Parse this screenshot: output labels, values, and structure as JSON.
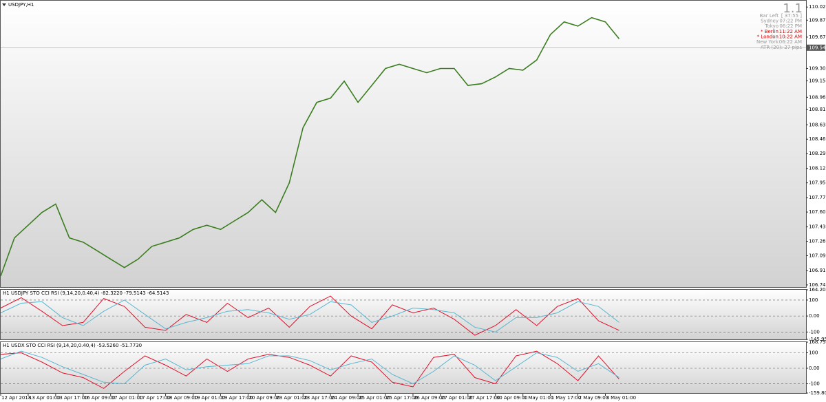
{
  "window_title": "USDJPY,H1",
  "info_panel": {
    "spread": "1.1",
    "rows": [
      [
        "Bar Left",
        "[ 37:55 ]"
      ],
      [
        "Sydney",
        "07:22 PM"
      ],
      [
        "Tokyo",
        "06:22 PM"
      ],
      [
        "* Berlin",
        "11:22 AM"
      ],
      [
        "* London",
        "10:22 AM"
      ],
      [
        "New York",
        "06:22 AM"
      ]
    ],
    "highlight_color": "#e00000",
    "atr": "ATR (20): 27 pips"
  },
  "chart_data": [
    {
      "type": "line",
      "last_price": 109.545,
      "x": [
        0,
        8,
        16,
        24,
        32,
        40,
        48,
        56,
        64,
        72,
        80,
        88,
        96,
        104,
        112,
        120,
        128,
        136,
        144,
        152,
        160,
        168,
        176,
        184,
        192,
        200,
        208,
        216,
        224,
        232,
        240,
        248,
        256,
        264,
        272,
        280,
        288,
        296,
        304,
        312,
        320,
        328,
        336,
        344,
        352,
        360
      ],
      "series": [
        {
          "color": "#3a7d1e",
          "values": [
            106.85,
            107.3,
            107.45,
            107.6,
            107.7,
            107.3,
            107.25,
            107.15,
            107.05,
            106.95,
            107.05,
            107.2,
            107.25,
            107.3,
            107.4,
            107.45,
            107.4,
            107.5,
            107.6,
            107.75,
            107.6,
            107.95,
            108.6,
            108.9,
            108.95,
            109.15,
            108.9,
            109.1,
            109.3,
            109.35,
            109.3,
            109.25,
            109.3,
            109.3,
            109.1,
            109.12,
            109.2,
            109.3,
            109.28,
            109.4,
            109.7,
            109.85,
            109.8,
            109.9,
            109.85,
            109.65
          ]
        }
      ],
      "xlim": [
        0,
        468.8
      ],
      "ylim": [
        106.72,
        110.1
      ],
      "xticks": [
        {
          "value": 0,
          "label": "12 Apr 2018"
        },
        {
          "value": 16,
          "label": "13 Apr 01:00"
        },
        {
          "value": 32,
          "label": "13 Apr 17:00"
        },
        {
          "value": 48,
          "label": "16 Apr 09:00"
        },
        {
          "value": 64,
          "label": "17 Apr 01:00"
        },
        {
          "value": 80,
          "label": "17 Apr 17:00"
        },
        {
          "value": 96,
          "label": "18 Apr 09:00"
        },
        {
          "value": 112,
          "label": "19 Apr 01:00"
        },
        {
          "value": 128,
          "label": "19 Apr 17:00"
        },
        {
          "value": 144,
          "label": "20 Apr 09:00"
        },
        {
          "value": 160,
          "label": "23 Apr 01:00"
        },
        {
          "value": 176,
          "label": "23 Apr 17:00"
        },
        {
          "value": 192,
          "label": "24 Apr 09:00"
        },
        {
          "value": 208,
          "label": "25 Apr 01:00"
        },
        {
          "value": 224,
          "label": "25 Apr 17:00"
        },
        {
          "value": 240,
          "label": "26 Apr 09:00"
        },
        {
          "value": 256,
          "label": "27 Apr 01:00"
        },
        {
          "value": 272,
          "label": "27 Apr 17:00"
        },
        {
          "value": 288,
          "label": "30 Apr 09:00"
        },
        {
          "value": 304,
          "label": "1 May 01:00"
        },
        {
          "value": 320,
          "label": "1 May 17:00"
        },
        {
          "value": 336,
          "label": "2 May 09:00"
        },
        {
          "value": 352,
          "label": "3 May 01:00"
        }
      ],
      "yticks": [
        110.025,
        {
          "value": 109.87,
          "label": "109.870"
        },
        {
          "value": 109.67,
          "label": "109.670"
        },
        {
          "value": 109.3,
          "label": "109.300"
        },
        109.155,
        {
          "value": 108.96,
          "label": "108.960"
        },
        108.815,
        108.635,
        108.465,
        108.295,
        {
          "value": 108.12,
          "label": "108.120"
        },
        {
          "value": 107.95,
          "label": "107.950"
        },
        107.775,
        107.605,
        {
          "value": 107.43,
          "label": "107.430"
        },
        {
          "value": 107.26,
          "label": "107.260"
        },
        {
          "value": 107.09,
          "label": "107.090"
        },
        106.915,
        106.745
      ],
      "grid": false
    },
    {
      "type": "line",
      "title": "H1 USDJPY STO CCI RSI (9,14,20,0.40,4) -82.3220 -79.5143 -64.5143",
      "x": [
        0,
        12,
        24,
        36,
        48,
        60,
        72,
        84,
        96,
        108,
        120,
        132,
        144,
        156,
        168,
        180,
        192,
        204,
        216,
        228,
        240,
        252,
        264,
        276,
        288,
        300,
        312,
        324,
        336,
        348,
        360
      ],
      "series": [
        {
          "color": "#e0102a",
          "values": [
            50,
            115,
            30,
            -60,
            -40,
            110,
            60,
            -70,
            -90,
            10,
            -40,
            80,
            -10,
            50,
            -70,
            60,
            125,
            0,
            -80,
            70,
            20,
            50,
            -20,
            -120,
            -60,
            40,
            -60,
            60,
            110,
            -30,
            -90
          ]
        },
        {
          "color": "#59b6d0",
          "values": [
            20,
            80,
            90,
            -10,
            -60,
            30,
            100,
            10,
            -80,
            -40,
            -10,
            30,
            40,
            20,
            -20,
            10,
            90,
            70,
            -40,
            0,
            50,
            40,
            20,
            -70,
            -100,
            -10,
            -10,
            20,
            90,
            60,
            -40
          ]
        }
      ],
      "xlim": [
        0,
        468.8
      ],
      "ylim": [
        -145.9595,
        164.2048
      ],
      "yticks": [
        164.2048,
        100,
        {
          "value": 0,
          "label": "0.00"
        },
        -100,
        -145.9595
      ],
      "grid": true
    },
    {
      "type": "line",
      "title": "H1 USDX STO CCI RSI (9,14,20,0.40,4) -53.5260 -51.7730",
      "x": [
        0,
        12,
        24,
        36,
        48,
        60,
        72,
        84,
        96,
        108,
        120,
        132,
        144,
        156,
        168,
        180,
        192,
        204,
        216,
        228,
        240,
        252,
        264,
        276,
        288,
        300,
        312,
        324,
        336,
        348,
        360
      ],
      "series": [
        {
          "color": "#e0102a",
          "values": [
            90,
            100,
            40,
            -30,
            -60,
            -130,
            -20,
            80,
            20,
            -50,
            60,
            -20,
            60,
            90,
            70,
            20,
            -50,
            80,
            40,
            -90,
            -120,
            70,
            90,
            -60,
            -100,
            80,
            110,
            30,
            -80,
            80,
            -70
          ]
        },
        {
          "color": "#59b6d0",
          "values": [
            60,
            110,
            70,
            10,
            -40,
            -90,
            -100,
            20,
            60,
            -10,
            10,
            20,
            30,
            80,
            80,
            50,
            -10,
            30,
            60,
            -40,
            -100,
            -20,
            80,
            20,
            -80,
            10,
            100,
            70,
            -20,
            30,
            -60
          ]
        }
      ],
      "xlim": [
        0,
        468.8
      ],
      "ylim": [
        -159.8038,
        168.794
      ],
      "yticks": [
        {
          "value": 168.794,
          "label": "168.7940"
        },
        100,
        {
          "value": 0,
          "label": "0.00"
        },
        -100,
        -159.8038
      ],
      "grid": true
    }
  ]
}
